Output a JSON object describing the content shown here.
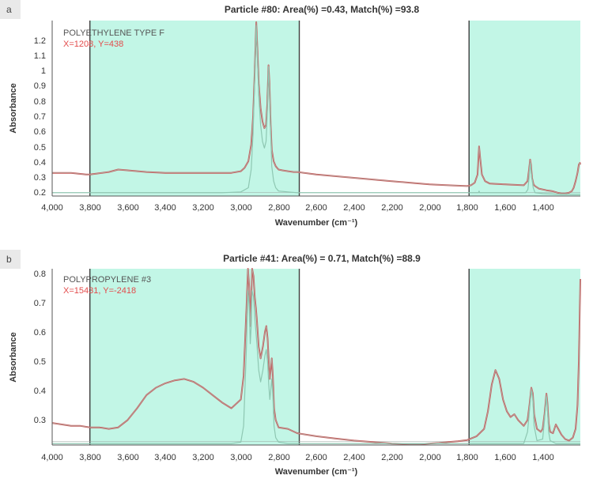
{
  "colors": {
    "region": "#c2f6e6",
    "measured": "#c85a5a",
    "measured_inner": "#aeb5ad",
    "reference": "#8ec7b2",
    "baseline": "#9aa8a2",
    "divider": "#3e3e3e",
    "coords": "#e34b4b",
    "tag_bg": "#e9e9e9",
    "text": "#333333"
  },
  "panels": [
    {
      "tag": "a",
      "title": "Particle #80: Area(%) =0.43, Match(%) =93.8",
      "spectrum_name": "POLYETHYLENE TYPE F",
      "coords": "X=1208, Y=438",
      "ylabel": "Absorbance",
      "xlabel": "Wavenumber (cm⁻¹)",
      "y_ticks": [
        "0.2",
        "0.3",
        "0.4",
        "0.5",
        "0.6",
        "0.7",
        "0.8",
        "0.9",
        "1",
        "1.1",
        "1.2"
      ],
      "x_ticks": [
        "4,000",
        "3,800",
        "3,600",
        "3,400",
        "3,200",
        "3,000",
        "2,800",
        "2,600",
        "2,400",
        "2,200",
        "2,000",
        "1,800",
        "1,600",
        "1,400"
      ]
    },
    {
      "tag": "b",
      "title": "Particle #41: Area(%) = 0.71, Match(%) =88.9",
      "spectrum_name": "POLYPROPYLENE #3",
      "coords": "X=15431, Y=-2418",
      "ylabel": "Absorbance",
      "xlabel": "Wavenumber (cm⁻¹)",
      "y_ticks": [
        "0.3",
        "0.4",
        "0.5",
        "0.6",
        "0.7",
        "0.8"
      ],
      "x_ticks": [
        "4,000",
        "3,800",
        "3,600",
        "3,400",
        "3,200",
        "3,000",
        "2,800",
        "2,600",
        "2,400",
        "2,200",
        "2,000",
        "1,800",
        "1,600",
        "1,400"
      ]
    }
  ],
  "chart_data": [
    {
      "type": "line",
      "title": "Particle #80: Area(%) =0.43, Match(%) =93.8",
      "xlabel": "Wavenumber (cm⁻¹)",
      "ylabel": "Absorbance",
      "xlim": [
        4000,
        1200
      ],
      "ylim": [
        0.17,
        1.23
      ],
      "x_reversed": true,
      "grid": false,
      "shaded_regions": [
        [
          3800,
          2690
        ],
        [
          1790,
          1200
        ]
      ],
      "series": [
        {
          "role": "measured",
          "x": [
            4000,
            3900,
            3820,
            3800,
            3700,
            3650,
            3600,
            3500,
            3400,
            3300,
            3200,
            3100,
            3050,
            3000,
            2980,
            2960,
            2945,
            2935,
            2927,
            2918,
            2912,
            2905,
            2895,
            2885,
            2875,
            2866,
            2860,
            2853,
            2848,
            2842,
            2836,
            2826,
            2815,
            2800,
            2780,
            2750,
            2720,
            2700,
            2600,
            2500,
            2400,
            2300,
            2200,
            2100,
            2000,
            1900,
            1800,
            1780,
            1760,
            1745,
            1737,
            1731,
            1722,
            1705,
            1680,
            1600,
            1500,
            1480,
            1472,
            1466,
            1462,
            1456,
            1448,
            1440,
            1420,
            1380,
            1350,
            1320,
            1300,
            1280,
            1260,
            1245,
            1235,
            1225,
            1215,
            1208,
            1202,
            1200
          ],
          "y": [
            0.31,
            0.31,
            0.3,
            0.3,
            0.315,
            0.33,
            0.325,
            0.315,
            0.31,
            0.31,
            0.31,
            0.31,
            0.31,
            0.32,
            0.34,
            0.38,
            0.48,
            0.65,
            0.9,
            1.22,
            1.05,
            0.85,
            0.7,
            0.62,
            0.58,
            0.6,
            0.72,
            0.96,
            0.85,
            0.6,
            0.45,
            0.38,
            0.35,
            0.33,
            0.325,
            0.32,
            0.315,
            0.315,
            0.3,
            0.29,
            0.28,
            0.27,
            0.26,
            0.25,
            0.24,
            0.235,
            0.23,
            0.235,
            0.25,
            0.3,
            0.47,
            0.4,
            0.3,
            0.26,
            0.245,
            0.24,
            0.235,
            0.26,
            0.33,
            0.39,
            0.36,
            0.28,
            0.24,
            0.23,
            0.215,
            0.205,
            0.2,
            0.19,
            0.185,
            0.185,
            0.19,
            0.2,
            0.22,
            0.26,
            0.31,
            0.36,
            0.37,
            0.36
          ]
        },
        {
          "role": "reference",
          "x": [
            4000,
            3800,
            3400,
            3100,
            3000,
            2960,
            2945,
            2935,
            2927,
            2918,
            2912,
            2905,
            2895,
            2885,
            2875,
            2866,
            2860,
            2853,
            2848,
            2842,
            2836,
            2826,
            2815,
            2800,
            2750,
            2700,
            2600,
            2400,
            2200,
            2000,
            1800,
            1760,
            1740,
            1737,
            1734,
            1720,
            1600,
            1490,
            1478,
            1472,
            1466,
            1460,
            1450,
            1440,
            1400,
            1300,
            1200
          ],
          "y": [
            0.19,
            0.19,
            0.19,
            0.19,
            0.195,
            0.22,
            0.33,
            0.55,
            0.86,
            1.2,
            1.0,
            0.78,
            0.6,
            0.5,
            0.46,
            0.5,
            0.66,
            0.95,
            0.8,
            0.55,
            0.35,
            0.26,
            0.22,
            0.2,
            0.195,
            0.19,
            0.19,
            0.19,
            0.19,
            0.19,
            0.19,
            0.19,
            0.19,
            0.2,
            0.19,
            0.19,
            0.19,
            0.19,
            0.21,
            0.28,
            0.37,
            0.3,
            0.22,
            0.19,
            0.185,
            0.18,
            0.18
          ]
        }
      ]
    },
    {
      "type": "line",
      "title": "Particle #41: Area(%) = 0.71, Match(%) =88.9",
      "xlabel": "Wavenumber (cm⁻¹)",
      "ylabel": "Absorbance",
      "xlim": [
        4000,
        1200
      ],
      "ylim": [
        0.215,
        0.815
      ],
      "x_reversed": true,
      "grid": false,
      "shaded_regions": [
        [
          3800,
          2690
        ],
        [
          1790,
          1200
        ]
      ],
      "series": [
        {
          "role": "measured",
          "x": [
            4000,
            3900,
            3850,
            3800,
            3750,
            3700,
            3650,
            3600,
            3550,
            3500,
            3450,
            3400,
            3350,
            3300,
            3250,
            3200,
            3150,
            3100,
            3050,
            3000,
            2985,
            2970,
            2962,
            2955,
            2950,
            2945,
            2940,
            2933,
            2926,
            2920,
            2915,
            2905,
            2895,
            2883,
            2872,
            2865,
            2858,
            2852,
            2846,
            2840,
            2836,
            2830,
            2824,
            2815,
            2800,
            2750,
            2700,
            2600,
            2500,
            2400,
            2300,
            2200,
            2100,
            2050,
            2000,
            1950,
            1900,
            1850,
            1800,
            1750,
            1710,
            1690,
            1670,
            1650,
            1630,
            1610,
            1590,
            1570,
            1550,
            1530,
            1500,
            1480,
            1470,
            1460,
            1452,
            1445,
            1430,
            1410,
            1400,
            1390,
            1380,
            1375,
            1368,
            1360,
            1345,
            1330,
            1300,
            1280,
            1260,
            1240,
            1225,
            1215,
            1208,
            1200
          ],
          "y": [
            0.29,
            0.28,
            0.28,
            0.275,
            0.275,
            0.27,
            0.275,
            0.3,
            0.34,
            0.385,
            0.41,
            0.425,
            0.435,
            0.44,
            0.43,
            0.41,
            0.385,
            0.36,
            0.34,
            0.37,
            0.45,
            0.68,
            0.82,
            0.75,
            0.62,
            0.7,
            0.82,
            0.79,
            0.72,
            0.68,
            0.64,
            0.55,
            0.51,
            0.55,
            0.6,
            0.62,
            0.58,
            0.5,
            0.44,
            0.48,
            0.51,
            0.45,
            0.34,
            0.3,
            0.275,
            0.27,
            0.255,
            0.245,
            0.237,
            0.23,
            0.225,
            0.22,
            0.218,
            0.218,
            0.22,
            0.222,
            0.225,
            0.228,
            0.232,
            0.245,
            0.27,
            0.33,
            0.42,
            0.47,
            0.44,
            0.37,
            0.33,
            0.31,
            0.32,
            0.3,
            0.28,
            0.3,
            0.35,
            0.41,
            0.39,
            0.32,
            0.27,
            0.26,
            0.27,
            0.32,
            0.39,
            0.36,
            0.29,
            0.26,
            0.255,
            0.285,
            0.25,
            0.235,
            0.23,
            0.24,
            0.27,
            0.35,
            0.5,
            0.78
          ]
        },
        {
          "role": "reference",
          "x": [
            4000,
            3600,
            3200,
            3050,
            3000,
            2985,
            2970,
            2962,
            2955,
            2950,
            2945,
            2940,
            2933,
            2926,
            2920,
            2915,
            2905,
            2895,
            2883,
            2872,
            2865,
            2858,
            2852,
            2846,
            2840,
            2836,
            2830,
            2824,
            2815,
            2800,
            2750,
            2700,
            2500,
            2200,
            2000,
            1800,
            1600,
            1500,
            1480,
            1470,
            1460,
            1452,
            1445,
            1430,
            1400,
            1390,
            1380,
            1375,
            1368,
            1360,
            1330,
            1300,
            1200
          ],
          "y": [
            0.22,
            0.22,
            0.22,
            0.22,
            0.225,
            0.28,
            0.55,
            0.74,
            0.68,
            0.56,
            0.62,
            0.74,
            0.72,
            0.65,
            0.6,
            0.56,
            0.47,
            0.43,
            0.47,
            0.52,
            0.54,
            0.5,
            0.42,
            0.37,
            0.41,
            0.44,
            0.38,
            0.28,
            0.24,
            0.225,
            0.22,
            0.22,
            0.22,
            0.22,
            0.22,
            0.22,
            0.22,
            0.22,
            0.26,
            0.33,
            0.4,
            0.37,
            0.28,
            0.23,
            0.235,
            0.3,
            0.38,
            0.34,
            0.26,
            0.23,
            0.22,
            0.22,
            0.22
          ]
        }
      ]
    }
  ]
}
